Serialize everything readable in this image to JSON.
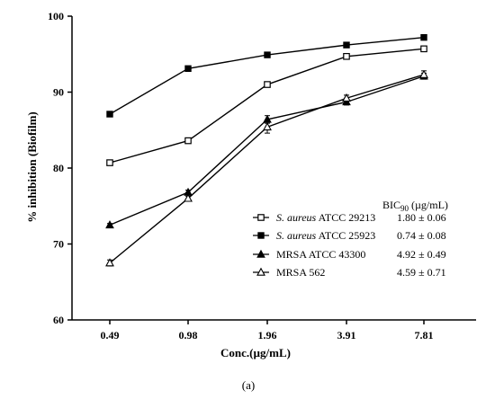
{
  "chart_data": {
    "type": "line",
    "xlabel": "Conc.(µg/mL)",
    "ylabel": "% inhibition (Biofilm)",
    "categories": [
      "0.49",
      "0.98",
      "1.96",
      "3.91",
      "7.81"
    ],
    "ylim": [
      60,
      100
    ],
    "yticks": [
      "60",
      "70",
      "80",
      "90",
      "100"
    ],
    "grid": false,
    "legend_placement": "bottom-right",
    "legend_header_base": "BIC",
    "legend_header_sub": "90",
    "legend_header_unit": " (µg/mL)",
    "caption": "(a)",
    "series": [
      {
        "name_italic": "S. aureus",
        "name_rest": " ATCC 29213",
        "bic": "1.80 ± 0.06",
        "marker": "open-square",
        "values": [
          80.7,
          83.6,
          91.0,
          94.7,
          95.7
        ],
        "errors": [
          0.2,
          0.2,
          0.3,
          0.2,
          0.2
        ]
      },
      {
        "name_italic": "S. aureus",
        "name_rest": " ATCC 25923",
        "bic": "0.74 ± 0.08",
        "marker": "filled-square",
        "values": [
          87.1,
          93.1,
          94.9,
          96.2,
          97.2
        ],
        "errors": [
          0.2,
          0.2,
          0.2,
          0.2,
          0.2
        ]
      },
      {
        "name_italic": "",
        "name_rest": "MRSA ATCC 43300",
        "bic": "4.92 ± 0.49",
        "marker": "filled-triangle",
        "values": [
          72.5,
          76.8,
          86.4,
          88.7,
          92.1
        ],
        "errors": [
          0.2,
          0.3,
          0.5,
          0.4,
          0.4
        ]
      },
      {
        "name_italic": "",
        "name_rest": "MRSA 562",
        "bic": "4.59 ± 0.71",
        "marker": "open-triangle",
        "values": [
          67.5,
          76.0,
          85.4,
          89.2,
          92.3
        ],
        "errors": [
          0.4,
          0.3,
          0.8,
          0.4,
          0.5
        ]
      }
    ]
  }
}
